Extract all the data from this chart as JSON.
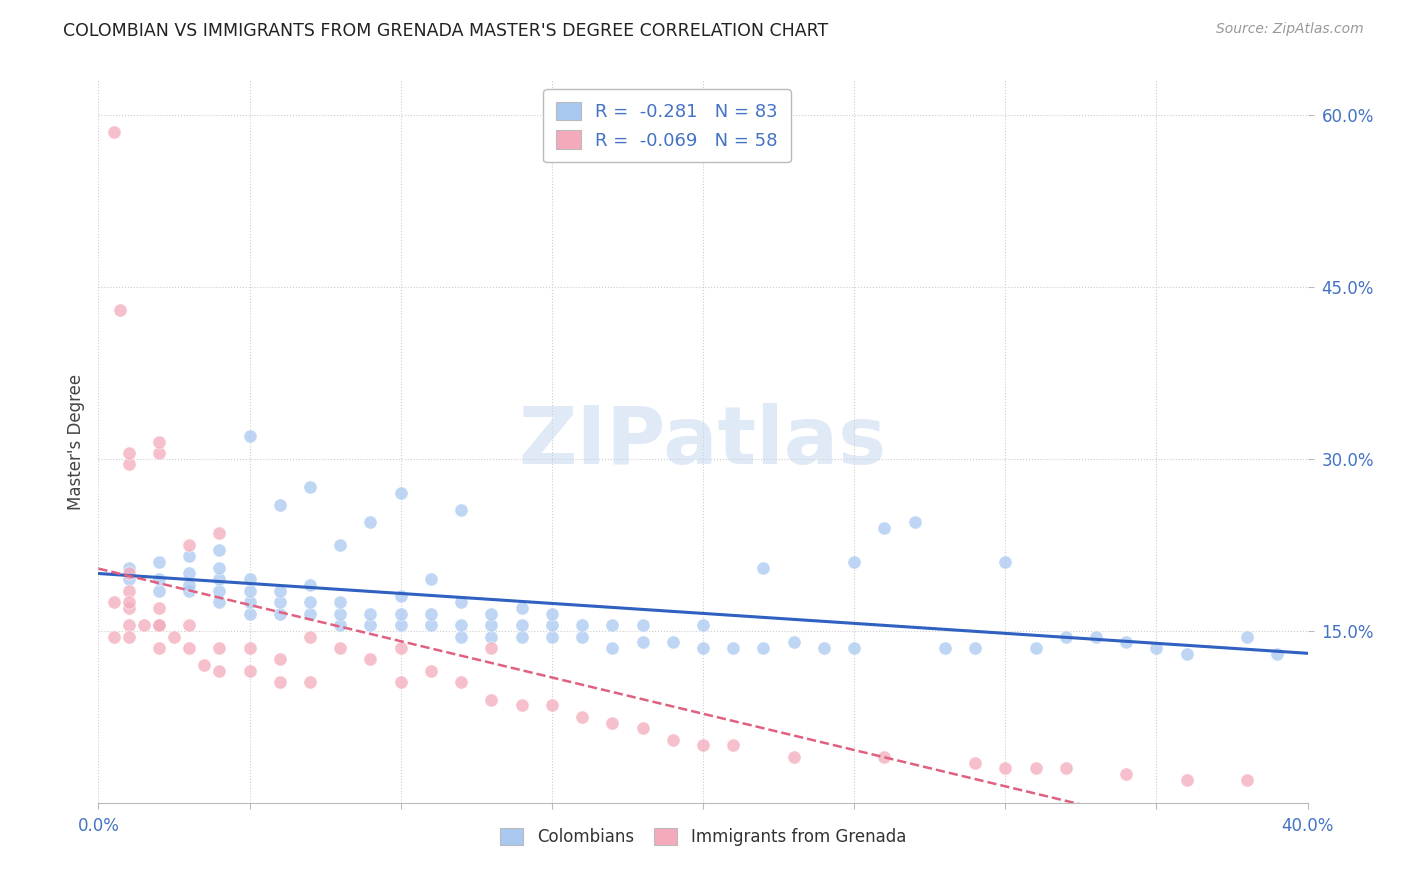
{
  "title": "COLOMBIAN VS IMMIGRANTS FROM GRENADA MASTER'S DEGREE CORRELATION CHART",
  "source": "Source: ZipAtlas.com",
  "ylabel": "Master's Degree",
  "xlim": [
    0.0,
    0.4
  ],
  "ylim": [
    0.0,
    0.63
  ],
  "ytick_vals": [
    0.15,
    0.3,
    0.45,
    0.6
  ],
  "ytick_labels": [
    "15.0%",
    "30.0%",
    "45.0%",
    "60.0%"
  ],
  "xtick_vals": [
    0.0,
    0.05,
    0.1,
    0.15,
    0.2,
    0.25,
    0.3,
    0.35,
    0.4
  ],
  "xtick_labels": [
    "0.0%",
    "",
    "",
    "",
    "",
    "",
    "",
    "",
    "40.0%"
  ],
  "blue_color": "#A8C8F0",
  "pink_color": "#F4AABB",
  "blue_line_color": "#3060C0",
  "pink_line_color": "#E06080",
  "grid_color": "#CCCCCC",
  "title_color": "#222222",
  "source_color": "#999999",
  "axis_tick_color": "#4472C4",
  "legend_text_color": "#4472C4",
  "watermark_color": "#C8D8F0",
  "blue_scatter_x": [
    0.01,
    0.01,
    0.02,
    0.02,
    0.02,
    0.03,
    0.03,
    0.03,
    0.03,
    0.04,
    0.04,
    0.04,
    0.04,
    0.04,
    0.05,
    0.05,
    0.05,
    0.05,
    0.05,
    0.06,
    0.06,
    0.06,
    0.06,
    0.07,
    0.07,
    0.07,
    0.07,
    0.08,
    0.08,
    0.08,
    0.08,
    0.09,
    0.09,
    0.09,
    0.1,
    0.1,
    0.1,
    0.1,
    0.11,
    0.11,
    0.11,
    0.12,
    0.12,
    0.12,
    0.12,
    0.13,
    0.13,
    0.13,
    0.14,
    0.14,
    0.14,
    0.15,
    0.15,
    0.15,
    0.16,
    0.16,
    0.17,
    0.17,
    0.18,
    0.18,
    0.19,
    0.2,
    0.2,
    0.21,
    0.22,
    0.22,
    0.23,
    0.24,
    0.25,
    0.25,
    0.26,
    0.27,
    0.28,
    0.29,
    0.3,
    0.31,
    0.32,
    0.33,
    0.34,
    0.35,
    0.36,
    0.38,
    0.39
  ],
  "blue_scatter_y": [
    0.195,
    0.205,
    0.185,
    0.195,
    0.21,
    0.185,
    0.19,
    0.2,
    0.215,
    0.175,
    0.185,
    0.195,
    0.205,
    0.22,
    0.165,
    0.175,
    0.185,
    0.195,
    0.32,
    0.165,
    0.175,
    0.185,
    0.26,
    0.165,
    0.175,
    0.19,
    0.275,
    0.155,
    0.165,
    0.175,
    0.225,
    0.155,
    0.165,
    0.245,
    0.155,
    0.165,
    0.18,
    0.27,
    0.155,
    0.165,
    0.195,
    0.145,
    0.155,
    0.175,
    0.255,
    0.145,
    0.155,
    0.165,
    0.145,
    0.155,
    0.17,
    0.145,
    0.155,
    0.165,
    0.145,
    0.155,
    0.135,
    0.155,
    0.14,
    0.155,
    0.14,
    0.135,
    0.155,
    0.135,
    0.135,
    0.205,
    0.14,
    0.135,
    0.21,
    0.135,
    0.24,
    0.245,
    0.135,
    0.135,
    0.21,
    0.135,
    0.145,
    0.145,
    0.14,
    0.135,
    0.13,
    0.145,
    0.13
  ],
  "pink_scatter_x": [
    0.005,
    0.005,
    0.007,
    0.01,
    0.01,
    0.01,
    0.01,
    0.01,
    0.01,
    0.01,
    0.015,
    0.02,
    0.02,
    0.02,
    0.02,
    0.02,
    0.025,
    0.03,
    0.03,
    0.03,
    0.035,
    0.04,
    0.04,
    0.04,
    0.05,
    0.05,
    0.06,
    0.06,
    0.07,
    0.07,
    0.08,
    0.09,
    0.1,
    0.1,
    0.11,
    0.12,
    0.13,
    0.13,
    0.14,
    0.15,
    0.16,
    0.17,
    0.18,
    0.19,
    0.2,
    0.21,
    0.23,
    0.26,
    0.29,
    0.3,
    0.31,
    0.32,
    0.34,
    0.36,
    0.38,
    0.005,
    0.01,
    0.02
  ],
  "pink_scatter_y": [
    0.585,
    0.175,
    0.43,
    0.155,
    0.17,
    0.185,
    0.2,
    0.295,
    0.305,
    0.175,
    0.155,
    0.135,
    0.155,
    0.17,
    0.305,
    0.315,
    0.145,
    0.135,
    0.155,
    0.225,
    0.12,
    0.115,
    0.135,
    0.235,
    0.115,
    0.135,
    0.105,
    0.125,
    0.105,
    0.145,
    0.135,
    0.125,
    0.105,
    0.135,
    0.115,
    0.105,
    0.09,
    0.135,
    0.085,
    0.085,
    0.075,
    0.07,
    0.065,
    0.055,
    0.05,
    0.05,
    0.04,
    0.04,
    0.035,
    0.03,
    0.03,
    0.03,
    0.025,
    0.02,
    0.02,
    0.145,
    0.145,
    0.155
  ]
}
